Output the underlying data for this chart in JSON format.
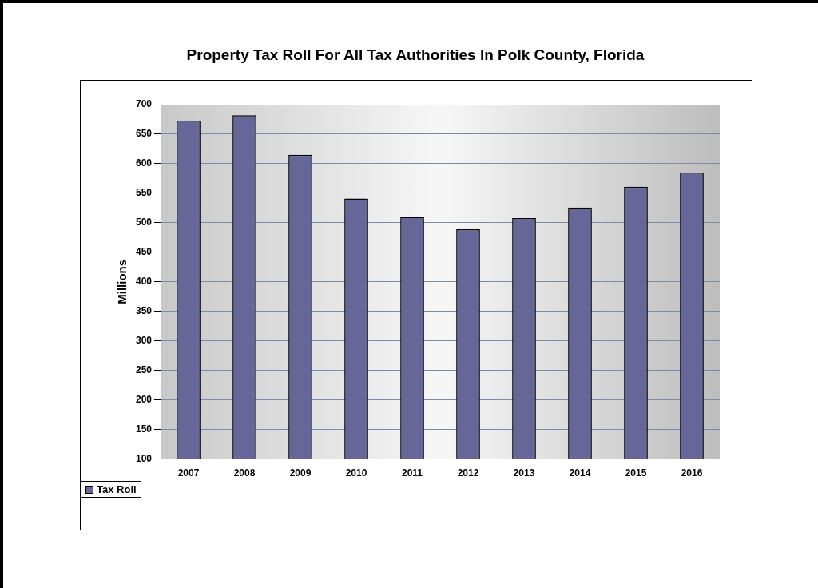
{
  "chart_data": {
    "type": "bar",
    "title": "Property Tax Roll For All Tax Authorities In Polk County, Florida",
    "ylabel": "Millions",
    "categories": [
      "2007",
      "2008",
      "2009",
      "2010",
      "2011",
      "2012",
      "2013",
      "2014",
      "2015",
      "2016"
    ],
    "series": [
      {
        "name": "Tax Roll",
        "color": "#666699",
        "values": [
          673,
          682,
          615,
          541,
          510,
          489,
          508,
          526,
          561,
          585
        ]
      }
    ],
    "ylim": [
      100,
      700
    ],
    "yticks": [
      100,
      150,
      200,
      250,
      300,
      350,
      400,
      450,
      500,
      550,
      600,
      650,
      700
    ],
    "grid": "y",
    "legend": "bottom left"
  }
}
